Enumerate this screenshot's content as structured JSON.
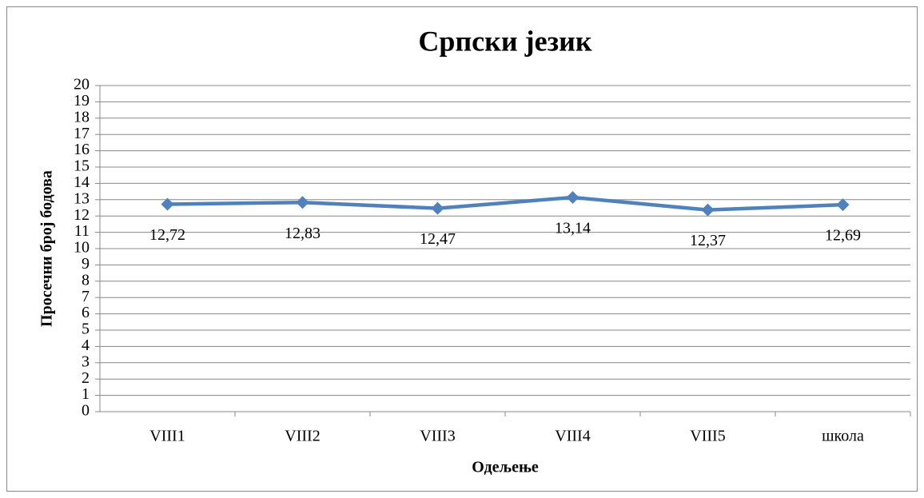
{
  "chart_data": {
    "type": "line",
    "title": "Српски језик",
    "xlabel": "Одељење",
    "ylabel": "Просечни број бодова",
    "categories": [
      "VIII1",
      "VIII2",
      "VIII3",
      "VIII4",
      "VIII5",
      "школа"
    ],
    "series": [
      {
        "name": "Српски језик",
        "color": "#4f81bd",
        "values": [
          12.72,
          12.83,
          12.47,
          13.14,
          12.37,
          12.69
        ],
        "value_labels": [
          "12,72",
          "12,83",
          "12,47",
          "13,14",
          "12,37",
          "12,69"
        ]
      }
    ],
    "ylim": [
      0,
      20
    ],
    "yticks": [
      0,
      1,
      2,
      3,
      4,
      5,
      6,
      7,
      8,
      9,
      10,
      11,
      12,
      13,
      14,
      15,
      16,
      17,
      18,
      19,
      20
    ],
    "grid": true
  }
}
